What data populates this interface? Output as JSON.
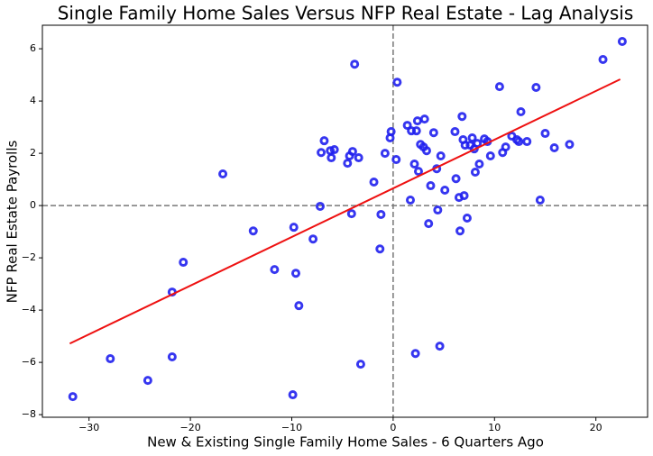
{
  "chart_data": {
    "type": "scatter",
    "title": "Single Family Home Sales Versus NFP Real Estate - Lag Analysis",
    "x_label": "New & Existing Single Family Home Sales - 6 Quarters Ago",
    "y_label": "NFP Real Estate Payrolls",
    "xlim": [
      -34.6,
      25.1
    ],
    "ylim": [
      -8.1,
      6.9
    ],
    "xticks": [
      {
        "value": -30,
        "label": "−30"
      },
      {
        "value": -20,
        "label": "−20"
      },
      {
        "value": -10,
        "label": "−10"
      },
      0,
      10,
      20
    ],
    "yticks": [
      {
        "value": -8,
        "label": "−8"
      },
      {
        "value": -6,
        "label": "−6"
      },
      {
        "value": -4,
        "label": "−4"
      },
      {
        "value": -2,
        "label": "−2"
      },
      0,
      2,
      4,
      6
    ],
    "reference_x": 0,
    "reference_y": 0,
    "points": {
      "color": "#2020ee",
      "x": [
        -31.6,
        -27.9,
        -24.2,
        -21.8,
        -21.8,
        -20.7,
        -16.8,
        -13.8,
        -11.7,
        -9.9,
        -9.8,
        -9.6,
        -9.3,
        -7.9,
        -7.2,
        -7.1,
        -6.8,
        -6.2,
        -6.1,
        -5.8,
        -4.5,
        -4.3,
        -4.1,
        -4.0,
        -3.8,
        -3.4,
        -3.2,
        -1.9,
        -1.3,
        -1.2,
        -0.8,
        -0.3,
        -0.2,
        0.3,
        0.4,
        1.4,
        1.7,
        1.8,
        2.1,
        2.2,
        2.3,
        2.4,
        2.5,
        2.7,
        3.0,
        3.1,
        3.3,
        3.5,
        3.7,
        4.0,
        4.3,
        4.4,
        4.6,
        4.7,
        5.1,
        6.1,
        6.2,
        6.5,
        6.6,
        6.8,
        6.9,
        7.0,
        7.1,
        7.3,
        7.6,
        7.8,
        8.0,
        8.1,
        8.3,
        8.5,
        9.0,
        9.3,
        9.6,
        10.5,
        10.8,
        11.1,
        11.7,
        12.2,
        12.4,
        12.6,
        13.2,
        14.1,
        14.5,
        15.0,
        15.9,
        17.4,
        20.7,
        22.6
      ],
      "y": [
        -7.31,
        -5.86,
        -6.69,
        -3.31,
        -5.79,
        -2.17,
        1.21,
        -0.97,
        -2.45,
        -7.24,
        -0.83,
        -2.59,
        -3.83,
        -1.28,
        -0.03,
        2.03,
        2.48,
        2.1,
        1.83,
        2.14,
        1.62,
        1.9,
        -0.31,
        2.07,
        5.41,
        1.83,
        -6.07,
        0.9,
        -1.66,
        -0.34,
        2.0,
        2.59,
        2.83,
        1.76,
        4.72,
        3.07,
        0.21,
        2.86,
        1.59,
        -5.66,
        2.86,
        3.24,
        1.31,
        2.34,
        2.24,
        3.31,
        2.1,
        -0.69,
        0.76,
        2.79,
        1.41,
        -0.17,
        -5.38,
        1.9,
        0.59,
        2.83,
        1.03,
        0.31,
        -0.97,
        3.41,
        2.52,
        0.38,
        2.31,
        -0.48,
        2.31,
        2.59,
        2.17,
        1.28,
        2.38,
        1.59,
        2.55,
        2.45,
        1.9,
        4.55,
        2.03,
        2.24,
        2.66,
        2.52,
        2.45,
        3.59,
        2.45,
        4.52,
        0.21,
        2.76,
        2.21,
        2.34,
        5.59,
        6.28
      ]
    },
    "fit_line": {
      "color": "#ee1111",
      "x": [
        -31.9,
        22.4
      ],
      "y": [
        -5.28,
        4.83
      ]
    }
  }
}
